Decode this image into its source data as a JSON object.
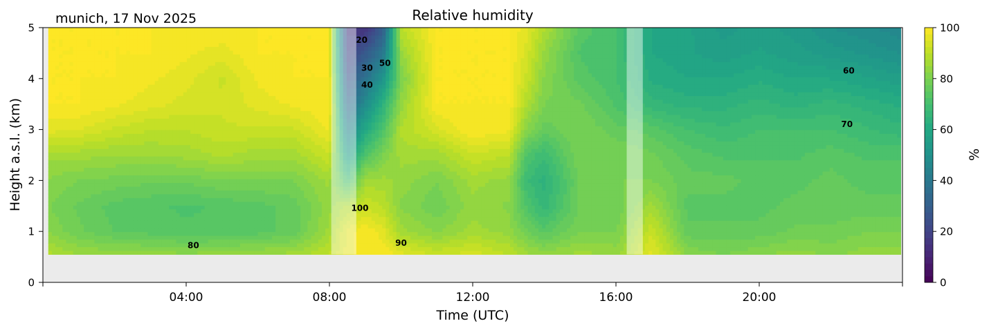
{
  "chart_data": {
    "type": "heatmap",
    "title": "Relative humidity",
    "subtitle": "munich, 17 Nov 2025",
    "xlabel": "Time (UTC)",
    "ylabel": "Height a.s.l. (km)",
    "colorbar_label": "%",
    "colormap": "viridis",
    "xlim_hours": [
      0,
      24
    ],
    "ylim_km": [
      0,
      5
    ],
    "clim": [
      0,
      100
    ],
    "x_ticks": [
      {
        "value": 0,
        "label": ""
      },
      {
        "value": 4,
        "label": "04:00"
      },
      {
        "value": 8,
        "label": "08:00"
      },
      {
        "value": 12,
        "label": "12:00"
      },
      {
        "value": 16,
        "label": "16:00"
      },
      {
        "value": 20,
        "label": "20:00"
      },
      {
        "value": 24,
        "label": ""
      }
    ],
    "y_ticks": [
      {
        "value": 0,
        "label": "0"
      },
      {
        "value": 1,
        "label": "1"
      },
      {
        "value": 2,
        "label": "2"
      },
      {
        "value": 3,
        "label": "3"
      },
      {
        "value": 4,
        "label": "4"
      },
      {
        "value": 5,
        "label": "5"
      }
    ],
    "colorbar_ticks": [
      {
        "value": 0,
        "label": "0"
      },
      {
        "value": 20,
        "label": "20"
      },
      {
        "value": 40,
        "label": "40"
      },
      {
        "value": 60,
        "label": "60"
      },
      {
        "value": 80,
        "label": "80"
      },
      {
        "value": 100,
        "label": "100"
      }
    ],
    "data_extent": {
      "time_start_hours": 0.15,
      "time_end_hours": 23.95,
      "height_min_km": 0.55,
      "height_max_km": 5.0
    },
    "heights_km": [
      0.55,
      1.0,
      1.5,
      2.0,
      2.5,
      3.0,
      3.5,
      4.0,
      4.5,
      5.0
    ],
    "times_hours": [
      0.2,
      1,
      2,
      3,
      4,
      5,
      6,
      7,
      8,
      8.5,
      9,
      9.5,
      10,
      11,
      12,
      13,
      13.5,
      14,
      15,
      16,
      17,
      18,
      19,
      20,
      21,
      22,
      23,
      23.9
    ],
    "rh_percent": [
      [
        88,
        82,
        80,
        82,
        86,
        96,
        100,
        100,
        100,
        100
      ],
      [
        85,
        78,
        77,
        80,
        86,
        95,
        100,
        100,
        100,
        100
      ],
      [
        84,
        75,
        74,
        79,
        85,
        92,
        98,
        100,
        100,
        100
      ],
      [
        84,
        74,
        73,
        78,
        85,
        90,
        96,
        98,
        100,
        100
      ],
      [
        83,
        73,
        72,
        78,
        86,
        90,
        94,
        96,
        98,
        100
      ],
      [
        84,
        73,
        73,
        80,
        88,
        92,
        93,
        92,
        96,
        100
      ],
      [
        85,
        74,
        74,
        80,
        86,
        92,
        96,
        98,
        100,
        100
      ],
      [
        86,
        76,
        76,
        80,
        86,
        92,
        98,
        100,
        100,
        100
      ],
      [
        90,
        86,
        84,
        86,
        92,
        98,
        100,
        100,
        100,
        100
      ],
      [
        96,
        96,
        88,
        70,
        56,
        44,
        34,
        26,
        20,
        16
      ],
      [
        100,
        100,
        92,
        86,
        72,
        60,
        48,
        38,
        28,
        14
      ],
      [
        100,
        96,
        90,
        86,
        80,
        72,
        64,
        52,
        40,
        30
      ],
      [
        96,
        86,
        82,
        84,
        86,
        88,
        84,
        80,
        84,
        90
      ],
      [
        92,
        82,
        78,
        80,
        86,
        94,
        100,
        100,
        100,
        100
      ],
      [
        94,
        86,
        84,
        86,
        92,
        100,
        100,
        100,
        100,
        100
      ],
      [
        90,
        84,
        82,
        84,
        90,
        98,
        100,
        100,
        100,
        100
      ],
      [
        86,
        78,
        72,
        68,
        72,
        82,
        88,
        92,
        94,
        96
      ],
      [
        84,
        74,
        66,
        64,
        68,
        76,
        80,
        82,
        84,
        88
      ],
      [
        86,
        80,
        78,
        78,
        80,
        80,
        78,
        74,
        72,
        74
      ],
      [
        84,
        80,
        78,
        80,
        80,
        76,
        72,
        70,
        70,
        70
      ],
      [
        96,
        92,
        86,
        80,
        78,
        74,
        66,
        62,
        60,
        60
      ],
      [
        82,
        76,
        74,
        76,
        74,
        70,
        64,
        60,
        58,
        58
      ],
      [
        80,
        76,
        74,
        76,
        72,
        68,
        64,
        60,
        56,
        54
      ],
      [
        82,
        76,
        74,
        74,
        72,
        70,
        66,
        62,
        58,
        56
      ],
      [
        84,
        78,
        76,
        74,
        72,
        70,
        64,
        60,
        56,
        54
      ],
      [
        82,
        78,
        76,
        76,
        74,
        70,
        66,
        60,
        54,
        50
      ],
      [
        84,
        80,
        76,
        74,
        72,
        68,
        64,
        58,
        52,
        48
      ],
      [
        84,
        80,
        76,
        74,
        72,
        66,
        62,
        56,
        50,
        46
      ]
    ],
    "contour_levels": [
      20,
      30,
      40,
      50,
      60,
      70,
      80,
      90,
      100
    ],
    "contour_labels": [
      {
        "text": "20",
        "time_hours": 8.9,
        "height_km": 4.7
      },
      {
        "text": "30",
        "time_hours": 9.05,
        "height_km": 4.15
      },
      {
        "text": "50",
        "time_hours": 9.55,
        "height_km": 4.25
      },
      {
        "text": "40",
        "time_hours": 9.05,
        "height_km": 3.82
      },
      {
        "text": "100",
        "time_hours": 8.85,
        "height_km": 1.4
      },
      {
        "text": "90",
        "time_hours": 10.0,
        "height_km": 0.72
      },
      {
        "text": "80",
        "time_hours": 4.2,
        "height_km": 0.67
      },
      {
        "text": "60",
        "time_hours": 22.5,
        "height_km": 4.1
      },
      {
        "text": "70",
        "time_hours": 22.45,
        "height_km": 3.05
      }
    ],
    "masked_regions": [
      {
        "description": "no data (shaded)",
        "time_hours": [
          8.05,
          8.75
        ],
        "height_km": [
          0.55,
          5.0
        ]
      },
      {
        "description": "no data (shaded)",
        "time_hours": [
          16.3,
          16.75
        ],
        "height_km": [
          0.55,
          5.0
        ]
      }
    ],
    "grid": false,
    "background_below_data": "#ebebeb"
  }
}
